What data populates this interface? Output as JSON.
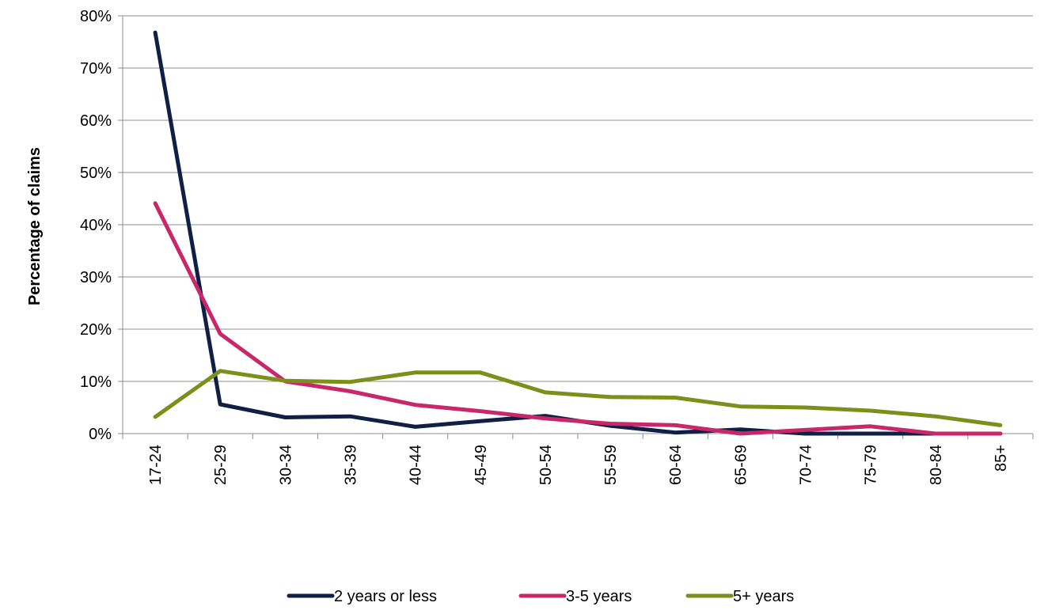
{
  "chart_data": {
    "type": "line",
    "title": "",
    "xlabel": "",
    "ylabel": "Percentage of claims",
    "categories": [
      "17-24",
      "25-29",
      "30-34",
      "35-39",
      "40-44",
      "45-49",
      "50-54",
      "55-59",
      "60-64",
      "65-69",
      "70-74",
      "75-79",
      "80-84",
      "85+"
    ],
    "ylim": [
      0,
      80
    ],
    "yticks": [
      "0%",
      "10%",
      "20%",
      "30%",
      "40%",
      "50%",
      "60%",
      "70%",
      "80%"
    ],
    "grid": true,
    "legend_position": "bottom",
    "series": [
      {
        "name": "2 years or less",
        "color": "#0f1f45",
        "values": [
          76.8,
          5.6,
          3.1,
          3.3,
          1.3,
          2.4,
          3.4,
          1.5,
          0.2,
          0.8,
          0,
          0,
          0,
          0
        ]
      },
      {
        "name": "3-5 years",
        "color": "#c8286a",
        "values": [
          44.1,
          19.1,
          10.0,
          8.1,
          5.5,
          4.3,
          2.9,
          1.9,
          1.6,
          0,
          0.7,
          1.4,
          0,
          0
        ]
      },
      {
        "name": "5+ years",
        "color": "#7b901a",
        "values": [
          3.2,
          12.0,
          10.1,
          9.9,
          11.7,
          11.7,
          7.9,
          7.0,
          6.9,
          5.2,
          5.0,
          4.4,
          3.3,
          1.6
        ]
      }
    ]
  }
}
